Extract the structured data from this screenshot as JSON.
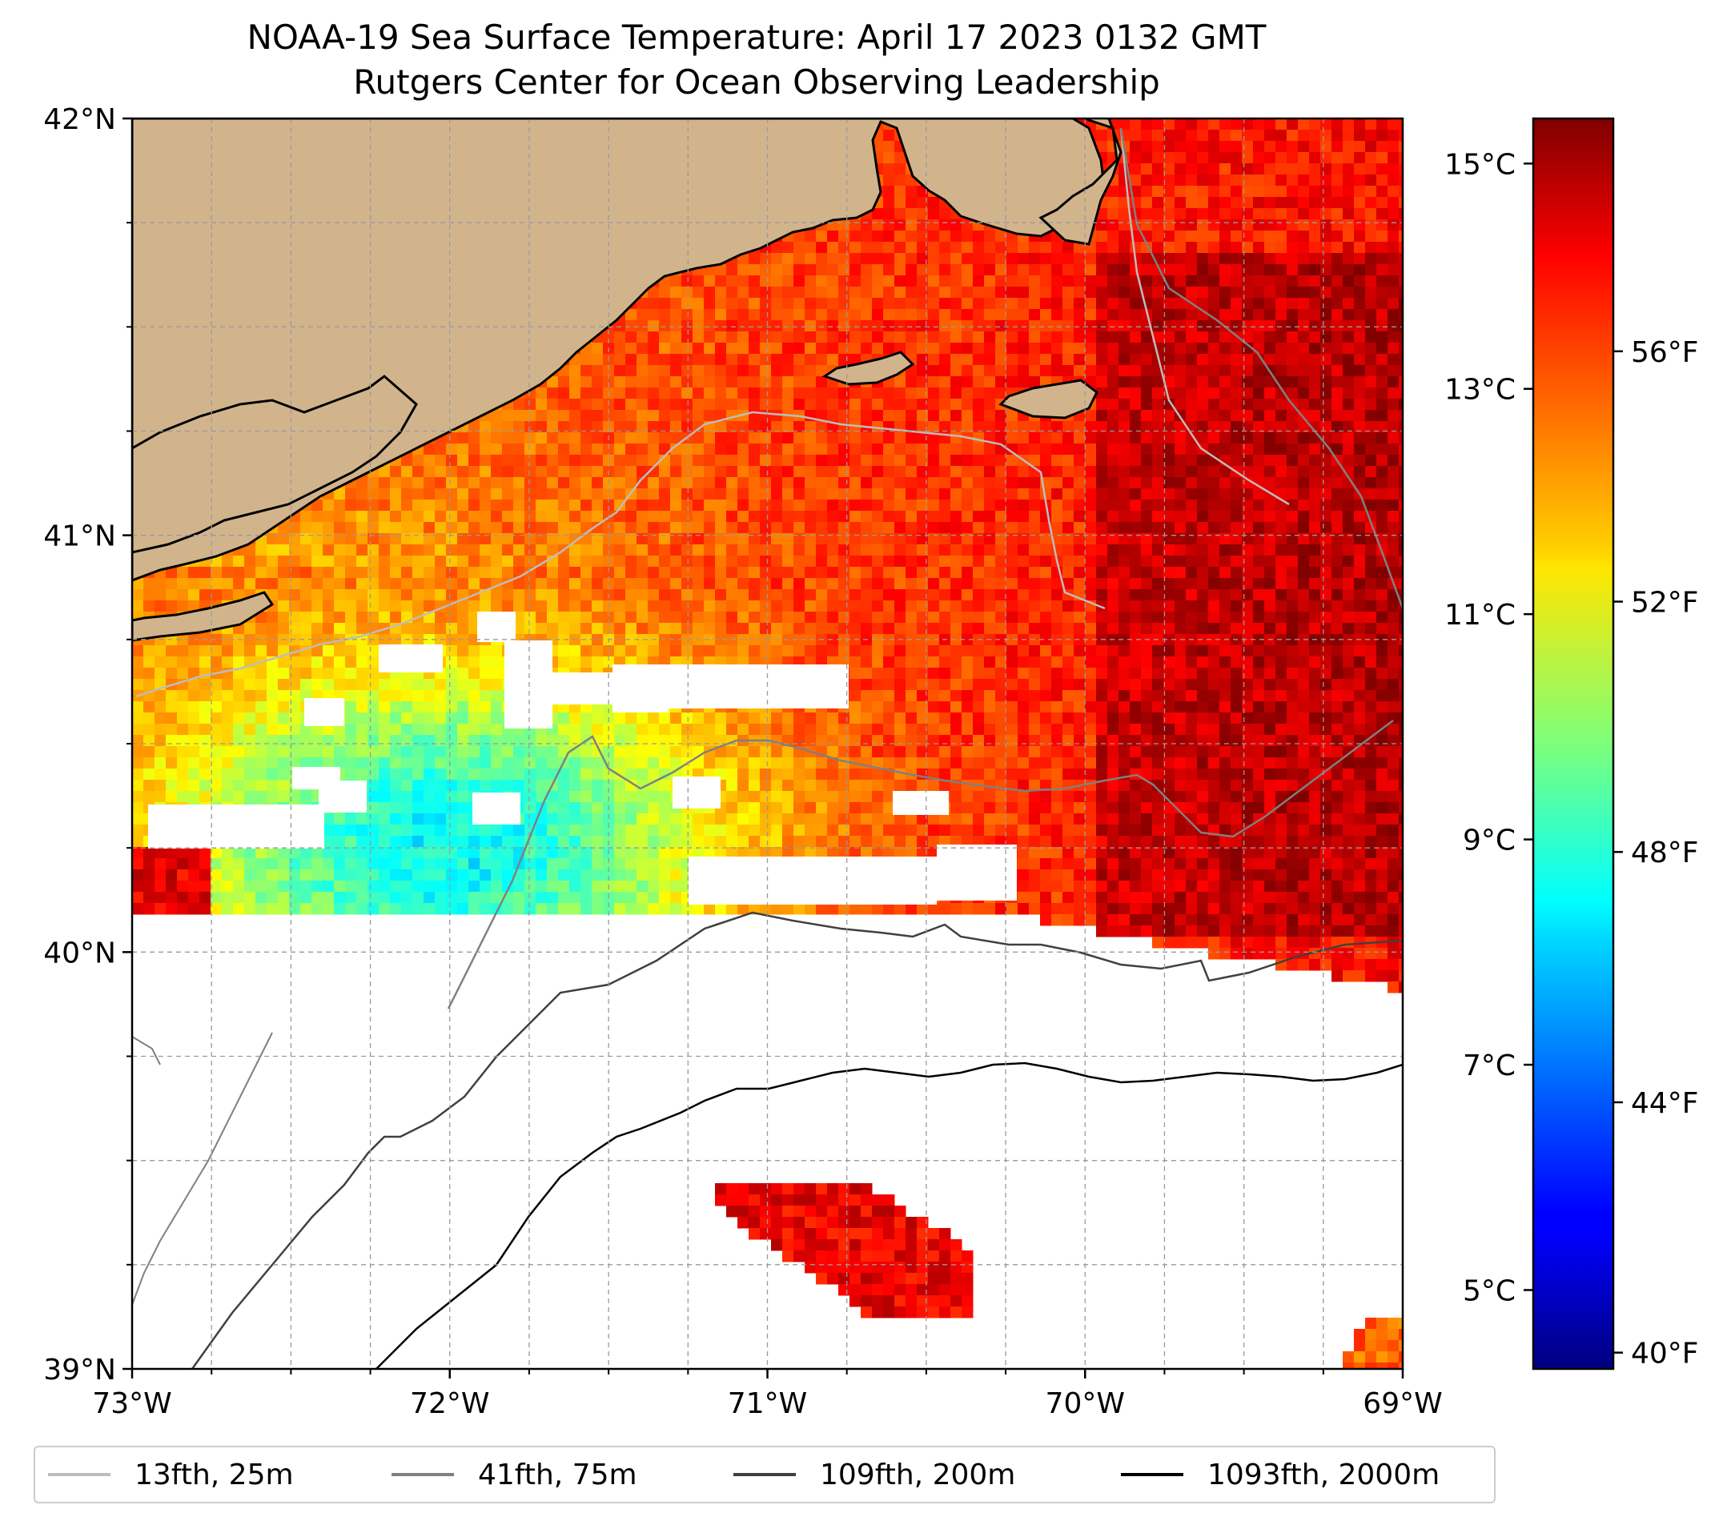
{
  "title": "NOAA-19 Sea Surface Temperature: April 17 2023 0132 GMT",
  "subtitle": "Rutgers Center for Ocean Observing Leadership",
  "map": {
    "lon_range": [
      -73,
      -69
    ],
    "lat_range": [
      39,
      42
    ],
    "lon_ticks": [
      "73°W",
      "72°W",
      "71°W",
      "70°W",
      "69°W"
    ],
    "lat_ticks": [
      "42°N",
      "41°N",
      "40°N",
      "39°N"
    ],
    "gridlines": true,
    "land_color": "#d2b48c",
    "no_data_color": "#ffffff",
    "colormap": "jet"
  },
  "colorbar": {
    "celsius_ticks": [
      "15°C",
      "13°C",
      "11°C",
      "9°C",
      "7°C",
      "5°C"
    ],
    "fahrenheit_ticks": [
      "56°F",
      "52°F",
      "48°F",
      "44°F",
      "40°F"
    ],
    "min_c": 4.3,
    "max_c": 15.4
  },
  "legend": {
    "items": [
      {
        "label": "13fth, 25m",
        "color": "#bdbdbd"
      },
      {
        "label": "41fth, 75m",
        "color": "#808080"
      },
      {
        "label": "109fth, 200m",
        "color": "#404040"
      },
      {
        "label": "1093fth, 2000m",
        "color": "#000000"
      }
    ]
  }
}
